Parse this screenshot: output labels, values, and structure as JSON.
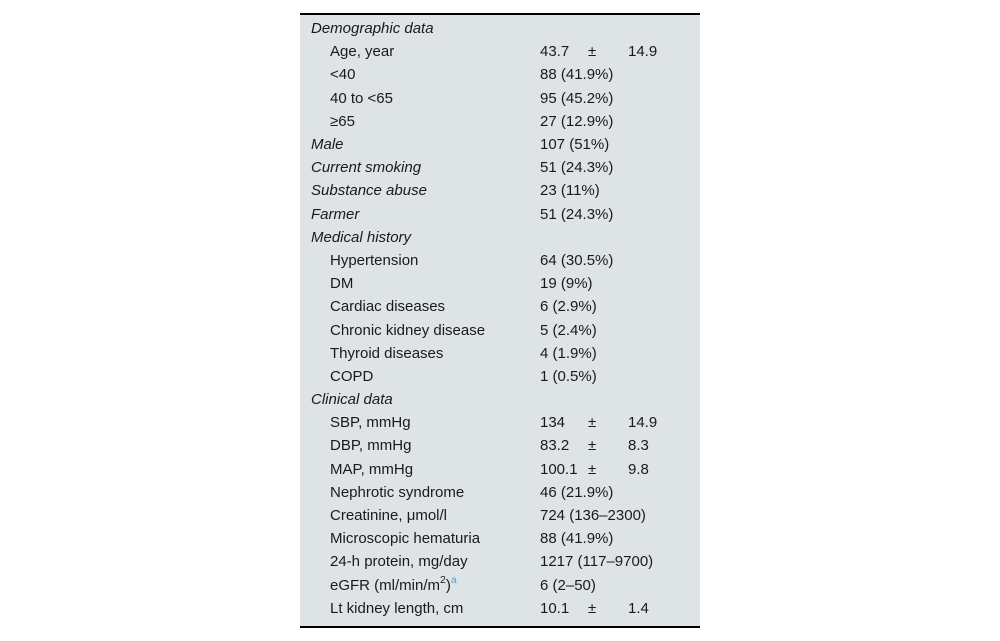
{
  "colors": {
    "page_background": "#ffffff",
    "table_background": "#dee3e6",
    "text": "#1a1a1a",
    "rule": "#000000",
    "footnote_link": "#4ba0d7"
  },
  "table": {
    "plus_minus_symbol": "±",
    "rows": [
      {
        "style": "section",
        "label": "Demographic data",
        "value": ""
      },
      {
        "style": "sub",
        "label": "Age, year",
        "mean": "43.7",
        "sd": "14.9"
      },
      {
        "style": "sub",
        "label": "<40",
        "value": "88 (41.9%)"
      },
      {
        "style": "sub",
        "label": "40 to <65",
        "value": "95 (45.2%)"
      },
      {
        "style": "sub",
        "label": "≥65",
        "value": "27 (12.9%)"
      },
      {
        "style": "section",
        "label": "Male",
        "value": "107 (51%)"
      },
      {
        "style": "section",
        "label": "Current smoking",
        "value": "51 (24.3%)"
      },
      {
        "style": "section",
        "label": "Substance abuse",
        "value": "23 (11%)"
      },
      {
        "style": "section",
        "label": "Farmer",
        "value": "51 (24.3%)"
      },
      {
        "style": "section",
        "label": "Medical history",
        "value": ""
      },
      {
        "style": "sub",
        "label": "Hypertension",
        "value": "64 (30.5%)"
      },
      {
        "style": "sub",
        "label": "DM",
        "value": "19 (9%)"
      },
      {
        "style": "sub",
        "label": "Cardiac diseases",
        "value": "6 (2.9%)"
      },
      {
        "style": "sub",
        "label": "Chronic kidney disease",
        "value": "5 (2.4%)"
      },
      {
        "style": "sub",
        "label": "Thyroid diseases",
        "value": "4 (1.9%)"
      },
      {
        "style": "sub",
        "label": "COPD",
        "value": "1 (0.5%)"
      },
      {
        "style": "section",
        "label": "Clinical data",
        "value": ""
      },
      {
        "style": "sub",
        "label": "SBP, mmHg",
        "mean": "134",
        "sd": "14.9"
      },
      {
        "style": "sub",
        "label": "DBP, mmHg",
        "mean": "83.2",
        "sd": "8.3"
      },
      {
        "style": "sub",
        "label": "MAP, mmHg",
        "mean": "100.1",
        "sd": "9.8"
      },
      {
        "style": "sub",
        "label": "Nephrotic syndrome",
        "value": "46 (21.9%)"
      },
      {
        "style": "sub",
        "label": "Creatinine, μmol/l",
        "value": "724 (136–2300)"
      },
      {
        "style": "sub",
        "label": "Microscopic hematuria",
        "value": "88 (41.9%)"
      },
      {
        "style": "sub",
        "label": "24-h protein, mg/day",
        "value": "1217 (117–9700)"
      },
      {
        "style": "sub",
        "label_parts": [
          {
            "t": "eGFR (ml/min/m"
          },
          {
            "t": "2",
            "sup": true
          },
          {
            "t": ")"
          },
          {
            "t": "a",
            "sup": true,
            "footnote": true
          }
        ],
        "value": "6 (2–50)"
      },
      {
        "style": "sub",
        "label": "Lt kidney length, cm",
        "mean": "10.1",
        "sd": "1.4"
      }
    ]
  }
}
